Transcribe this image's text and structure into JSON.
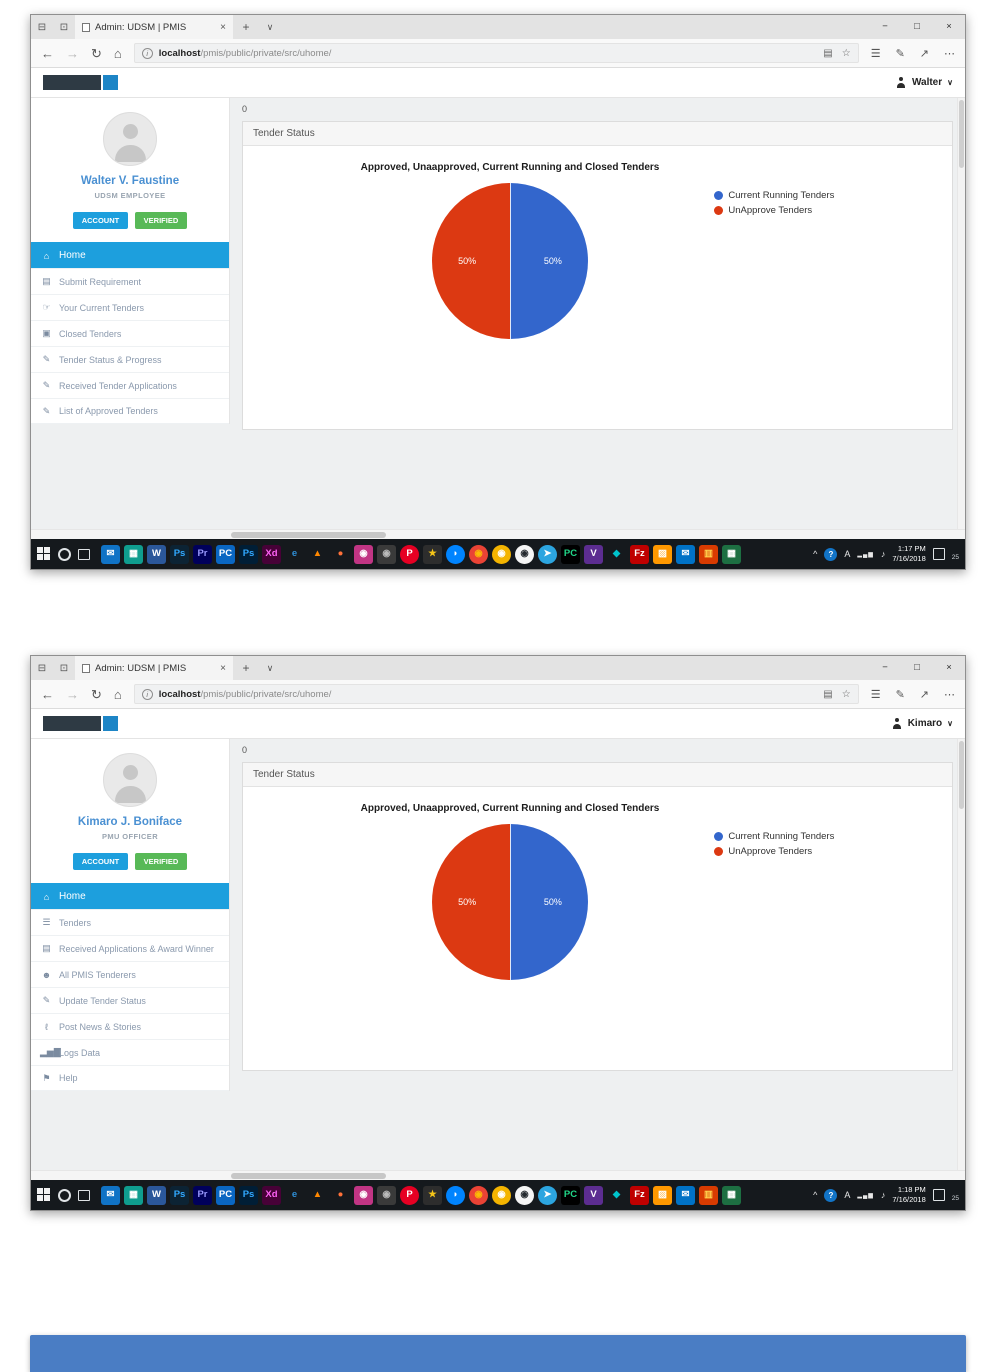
{
  "page": {
    "background": "#ffffff",
    "bottom_bar_color": "#4a7dc4"
  },
  "chart_data": [
    {
      "type": "pie",
      "title": "Approved, Unaapproved, Current Running and Closed Tenders",
      "series": [
        {
          "name": "Current Running Tenders",
          "value": 50,
          "label": "50%",
          "color": "#3366cc"
        },
        {
          "name": "UnApprove Tenders",
          "value": 50,
          "label": "50%",
          "color": "#dc3912"
        }
      ],
      "legend_position": "right"
    },
    {
      "type": "pie",
      "title": "Approved, Unaapproved, Current Running and Closed Tenders",
      "series": [
        {
          "name": "Current Running Tenders",
          "value": 50,
          "label": "50%",
          "color": "#3366cc"
        },
        {
          "name": "UnApprove Tenders",
          "value": 50,
          "label": "50%",
          "color": "#dc3912"
        }
      ],
      "legend_position": "right"
    }
  ],
  "taskbar": {
    "icons": [
      {
        "icon_name": "mail-app-icon",
        "glyph": "✉",
        "bg": "#1073c6",
        "fg": "#ffffff"
      },
      {
        "icon_name": "store-app-icon",
        "glyph": "▦",
        "bg": "#0f9d8f",
        "fg": "#ffffff"
      },
      {
        "icon_name": "word-app-icon",
        "glyph": "W",
        "bg": "#2b579a",
        "fg": "#ffffff"
      },
      {
        "icon_name": "photoshop-app-icon",
        "glyph": "Ps",
        "bg": "#0c2334",
        "fg": "#31a8ff"
      },
      {
        "icon_name": "premiere-app-icon",
        "glyph": "Pr",
        "bg": "#00005b",
        "fg": "#9999ff"
      },
      {
        "icon_name": "pc-app-icon",
        "glyph": "PC",
        "bg": "#0a66c2",
        "fg": "#ffffff"
      },
      {
        "icon_name": "photoshop-cc-app-icon",
        "glyph": "Ps",
        "bg": "#001e36",
        "fg": "#31a8ff"
      },
      {
        "icon_name": "adobe-xd-app-icon",
        "glyph": "Xd",
        "bg": "#470137",
        "fg": "#ff61f6"
      },
      {
        "icon_name": "edge-app-icon",
        "glyph": "e",
        "bg": "transparent",
        "fg": "#2f8ed6"
      },
      {
        "icon_name": "vlc-app-icon",
        "glyph": "▲",
        "bg": "transparent",
        "fg": "#ff8800"
      },
      {
        "icon_name": "firefox-app-icon",
        "glyph": "●",
        "bg": "transparent",
        "fg": "#ff7139"
      },
      {
        "icon_name": "instagram-app-icon",
        "glyph": "◉",
        "bg": "#c13584",
        "fg": "#ffffff"
      },
      {
        "icon_name": "camera-app-icon",
        "glyph": "◉",
        "bg": "#3a3a3a",
        "fg": "#bbbbbb"
      },
      {
        "icon_name": "pinterest-app-icon",
        "glyph": "P",
        "bg": "#e60023",
        "fg": "#ffffff",
        "round": true
      },
      {
        "icon_name": "star-app-icon",
        "glyph": "★",
        "bg": "#2d2d2d",
        "fg": "#f5c518"
      },
      {
        "icon_name": "messenger-app-icon",
        "glyph": "◗",
        "bg": "#0084ff",
        "fg": "#ffffff",
        "round": true
      },
      {
        "icon_name": "chrome-app-icon",
        "glyph": "◉",
        "bg": "#ea4335",
        "fg": "#fbbc05",
        "round": true
      },
      {
        "icon_name": "idea-app-icon",
        "glyph": "◉",
        "bg": "#f4b400",
        "fg": "#ffffff",
        "round": true
      },
      {
        "icon_name": "github-app-icon",
        "glyph": "◉",
        "bg": "#f5f5f5",
        "fg": "#24292e",
        "round": true
      },
      {
        "icon_name": "telegram-app-icon",
        "glyph": "➤",
        "bg": "#2ca5e0",
        "fg": "#ffffff",
        "round": true
      },
      {
        "icon_name": "pycharm-app-icon",
        "glyph": "PC",
        "bg": "#000000",
        "fg": "#21d789"
      },
      {
        "icon_name": "visual-studio-app-icon",
        "glyph": "V",
        "bg": "#5c2d91",
        "fg": "#ffffff"
      },
      {
        "icon_name": "diamond-app-icon",
        "glyph": "◆",
        "bg": "transparent",
        "fg": "#00c4cc"
      },
      {
        "icon_name": "filezilla-app-icon",
        "glyph": "Fz",
        "bg": "#bf0000",
        "fg": "#ffffff"
      },
      {
        "icon_name": "sublime-app-icon",
        "glyph": "▨",
        "bg": "#ff9800",
        "fg": "#ffffff"
      },
      {
        "icon_name": "outlook-app-icon",
        "glyph": "✉",
        "bg": "#0072c6",
        "fg": "#ffffff"
      },
      {
        "icon_name": "giftbox-app-icon",
        "glyph": "▥",
        "bg": "#d83b01",
        "fg": "#ffd34d"
      },
      {
        "icon_name": "green-store-app-icon",
        "glyph": "▦",
        "bg": "#1d6f42",
        "fg": "#ffffff"
      }
    ],
    "tray": {
      "expand": "^",
      "help": "?",
      "ime": "A",
      "network": "▂▄▆",
      "volume": "♪",
      "badge": "25"
    }
  },
  "windows": [
    {
      "browser": {
        "set_aside_icon": "⊟",
        "preview_icon": "⊡",
        "tab_title": "Admin: UDSM | PMIS",
        "tab_close": "×",
        "new_tab": "+",
        "tab_chevron": "∨",
        "back": "←",
        "forward": "→",
        "refresh": "↻",
        "home": "⌂",
        "info": "i",
        "url_host": "localhost",
        "url_path": "/pmis/public/private/src/uhome/",
        "reading_view": "▤",
        "favorite_star": "☆",
        "hub": "☰",
        "web_note": "✎",
        "share": "↗",
        "more": "⋯",
        "minimize": "−",
        "maximize": "□",
        "close": "×"
      },
      "header": {
        "user_name": "Walter",
        "caret": "∨"
      },
      "profile": {
        "name": "Walter V. Faustine",
        "role": "UDSM EMPLOYEE",
        "buttons": [
          {
            "label": "ACCOUNT",
            "color": "#1d9fdd"
          },
          {
            "label": "VERIFIED",
            "color": "#58b957"
          }
        ]
      },
      "sidebar": {
        "items": [
          {
            "label": "Home",
            "icon": "⌂",
            "icon_name": "home-icon",
            "item_name": "sidebar-item-home",
            "active": true
          },
          {
            "label": "Submit Requirement",
            "icon": "▤",
            "icon_name": "folder-icon",
            "item_name": "sidebar-item-submit-requirement"
          },
          {
            "label": "Your Current Tenders",
            "icon": "☞",
            "icon_name": "hand-pointer-icon",
            "item_name": "sidebar-item-your-current-tenders"
          },
          {
            "label": "Closed Tenders",
            "icon": "▣",
            "icon_name": "lock-icon",
            "item_name": "sidebar-item-closed-tenders"
          },
          {
            "label": "Tender Status & Progress",
            "icon": "✎",
            "icon_name": "pencil-icon",
            "item_name": "sidebar-item-tender-status-progress"
          },
          {
            "label": "Received Tender Applications",
            "icon": "✎",
            "icon_name": "pencil-icon",
            "item_name": "sidebar-item-received-tender-applications"
          },
          {
            "label": "List of Approved Tenders",
            "icon": "✎",
            "icon_name": "pencil-icon",
            "item_name": "sidebar-item-list-of-approved-tenders"
          }
        ]
      },
      "main": {
        "stray_text": "0",
        "panel_title": "Tender Status"
      },
      "taskbar_clock": {
        "time": "1:17 PM",
        "date": "7/16/2018"
      }
    },
    {
      "browser": {
        "set_aside_icon": "⊟",
        "preview_icon": "⊡",
        "tab_title": "Admin: UDSM | PMIS",
        "tab_close": "×",
        "new_tab": "+",
        "tab_chevron": "∨",
        "back": "←",
        "forward": "→",
        "refresh": "↻",
        "home": "⌂",
        "info": "i",
        "url_host": "localhost",
        "url_path": "/pmis/public/private/src/uhome/",
        "reading_view": "▤",
        "favorite_star": "☆",
        "hub": "☰",
        "web_note": "✎",
        "share": "↗",
        "more": "⋯",
        "minimize": "−",
        "maximize": "□",
        "close": "×"
      },
      "header": {
        "user_name": "Kimaro",
        "caret": "∨"
      },
      "profile": {
        "name": "Kimaro J. Boniface",
        "role": "PMU OFFICER",
        "buttons": [
          {
            "label": "ACCOUNT",
            "color": "#1d9fdd"
          },
          {
            "label": "VERIFIED",
            "color": "#58b957"
          }
        ]
      },
      "sidebar": {
        "items": [
          {
            "label": "Home",
            "icon": "⌂",
            "icon_name": "home-icon",
            "item_name": "sidebar-item-home",
            "active": true
          },
          {
            "label": "Tenders",
            "icon": "☰",
            "icon_name": "briefcase-icon",
            "item_name": "sidebar-item-tenders"
          },
          {
            "label": "Received Applications & Award Winner",
            "icon": "▤",
            "icon_name": "folder-icon",
            "item_name": "sidebar-item-received-applications-award-winner"
          },
          {
            "label": "All PMIS Tenderers",
            "icon": "☻",
            "icon_name": "person-icon",
            "item_name": "sidebar-item-all-pmis-tenderers"
          },
          {
            "label": "Update Tender Status",
            "icon": "✎",
            "icon_name": "pencil-icon",
            "item_name": "sidebar-item-update-tender-status"
          },
          {
            "label": "Post News & Stories",
            "icon": "ℓ",
            "icon_name": "paperclip-icon",
            "item_name": "sidebar-item-post-news-stories"
          },
          {
            "label": "Logs Data",
            "icon": "▂▅▇",
            "icon_name": "bar-chart-icon",
            "item_name": "sidebar-item-logs-data"
          },
          {
            "label": "Help",
            "icon": "⚑",
            "icon_name": "flag-icon",
            "item_name": "sidebar-item-help"
          }
        ]
      },
      "main": {
        "stray_text": "0",
        "panel_title": "Tender Status"
      },
      "taskbar_clock": {
        "time": "1:18 PM",
        "date": "7/16/2018"
      }
    }
  ]
}
